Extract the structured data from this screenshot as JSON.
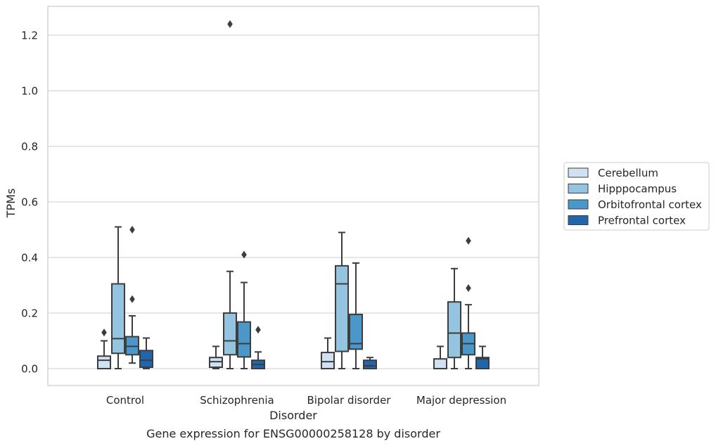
{
  "chart_data": {
    "type": "box",
    "title": "",
    "caption": "Gene expression for ENSG00000258128 by disorder",
    "xlabel": "Disorder",
    "ylabel": "TPMs",
    "ylim": [
      -0.06,
      1.3
    ],
    "yticks": [
      "0.0",
      "0.2",
      "0.4",
      "0.6",
      "0.8",
      "1.0",
      "1.2"
    ],
    "grid": "horizontal",
    "legend_position": "right",
    "categories": [
      "Control",
      "Schizophrenia",
      "Bipolar disorder",
      "Major depression"
    ],
    "series": [
      {
        "name": "Cerebellum",
        "color": "#d0e1f2",
        "boxes": [
          {
            "whisker_low": 0.0,
            "q1": 0.0,
            "median": 0.03,
            "q3": 0.045,
            "whisker_high": 0.1,
            "outliers": [
              0.13
            ]
          },
          {
            "whisker_low": 0.0,
            "q1": 0.005,
            "median": 0.025,
            "q3": 0.04,
            "whisker_high": 0.08,
            "outliers": []
          },
          {
            "whisker_low": 0.0,
            "q1": 0.0,
            "median": 0.025,
            "q3": 0.058,
            "whisker_high": 0.11,
            "outliers": []
          },
          {
            "whisker_low": 0.0,
            "q1": 0.0,
            "median": 0.0,
            "q3": 0.035,
            "whisker_high": 0.08,
            "outliers": []
          }
        ]
      },
      {
        "name": "Hipppocampus",
        "color": "#94c4df",
        "boxes": [
          {
            "whisker_low": 0.0,
            "q1": 0.055,
            "median": 0.108,
            "q3": 0.305,
            "whisker_high": 0.51,
            "outliers": []
          },
          {
            "whisker_low": 0.0,
            "q1": 0.05,
            "median": 0.1,
            "q3": 0.2,
            "whisker_high": 0.35,
            "outliers": [
              1.24
            ]
          },
          {
            "whisker_low": 0.0,
            "q1": 0.062,
            "median": 0.305,
            "q3": 0.37,
            "whisker_high": 0.49,
            "outliers": []
          },
          {
            "whisker_low": 0.0,
            "q1": 0.04,
            "median": 0.128,
            "q3": 0.24,
            "whisker_high": 0.36,
            "outliers": []
          }
        ]
      },
      {
        "name": "Orbitofrontal cortex",
        "color": "#4a98c9",
        "boxes": [
          {
            "whisker_low": 0.02,
            "q1": 0.05,
            "median": 0.08,
            "q3": 0.115,
            "whisker_high": 0.19,
            "outliers": [
              0.25,
              0.5
            ]
          },
          {
            "whisker_low": 0.0,
            "q1": 0.042,
            "median": 0.09,
            "q3": 0.168,
            "whisker_high": 0.31,
            "outliers": [
              0.41
            ]
          },
          {
            "whisker_low": 0.0,
            "q1": 0.07,
            "median": 0.09,
            "q3": 0.195,
            "whisker_high": 0.38,
            "outliers": []
          },
          {
            "whisker_low": 0.0,
            "q1": 0.05,
            "median": 0.09,
            "q3": 0.128,
            "whisker_high": 0.23,
            "outliers": [
              0.29,
              0.46
            ]
          }
        ]
      },
      {
        "name": "Prefrontal cortex",
        "color": "#2166ac",
        "boxes": [
          {
            "whisker_low": 0.0,
            "q1": 0.005,
            "median": 0.03,
            "q3": 0.065,
            "whisker_high": 0.11,
            "outliers": []
          },
          {
            "whisker_low": 0.0,
            "q1": 0.0,
            "median": 0.015,
            "q3": 0.03,
            "whisker_high": 0.06,
            "outliers": [
              0.14
            ]
          },
          {
            "whisker_low": 0.0,
            "q1": 0.0,
            "median": 0.01,
            "q3": 0.03,
            "whisker_high": 0.04,
            "outliers": []
          },
          {
            "whisker_low": 0.0,
            "q1": 0.0,
            "median": 0.035,
            "q3": 0.04,
            "whisker_high": 0.08,
            "outliers": []
          }
        ]
      }
    ]
  }
}
